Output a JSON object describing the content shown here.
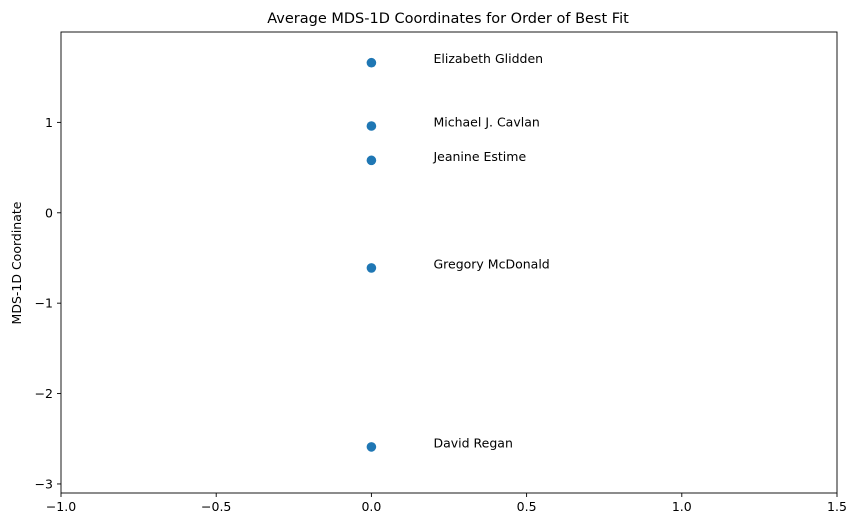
{
  "chart_data": {
    "type": "scatter",
    "title": "Average MDS-1D Coordinates for Order of Best Fit",
    "xlabel": "",
    "ylabel": "MDS-1D Coordinate",
    "xlim": [
      -1.0,
      1.5
    ],
    "ylim": [
      -3.1,
      2.0
    ],
    "x_ticks": [
      -1.0,
      -0.5,
      0.0,
      0.5,
      1.0,
      1.5
    ],
    "x_tick_labels": [
      "−1.0",
      "−0.5",
      "0.0",
      "0.5",
      "1.0",
      "1.5"
    ],
    "y_ticks": [
      -3,
      -2,
      -1,
      0,
      1
    ],
    "y_tick_labels": [
      "−3",
      "−2",
      "−1",
      "0",
      "1"
    ],
    "grid": false,
    "marker_color": "#1f77b4",
    "points": [
      {
        "label": "Elizabeth Glidden",
        "x": 0.0,
        "y": 1.66
      },
      {
        "label": "Michael J. Cavlan",
        "x": 0.0,
        "y": 0.96
      },
      {
        "label": "Jeanine Estime",
        "x": 0.0,
        "y": 0.58
      },
      {
        "label": "Gregory McDonald",
        "x": 0.0,
        "y": -0.61
      },
      {
        "label": "David Regan",
        "x": 0.0,
        "y": -2.59
      }
    ],
    "label_x_offset": 0.2
  }
}
